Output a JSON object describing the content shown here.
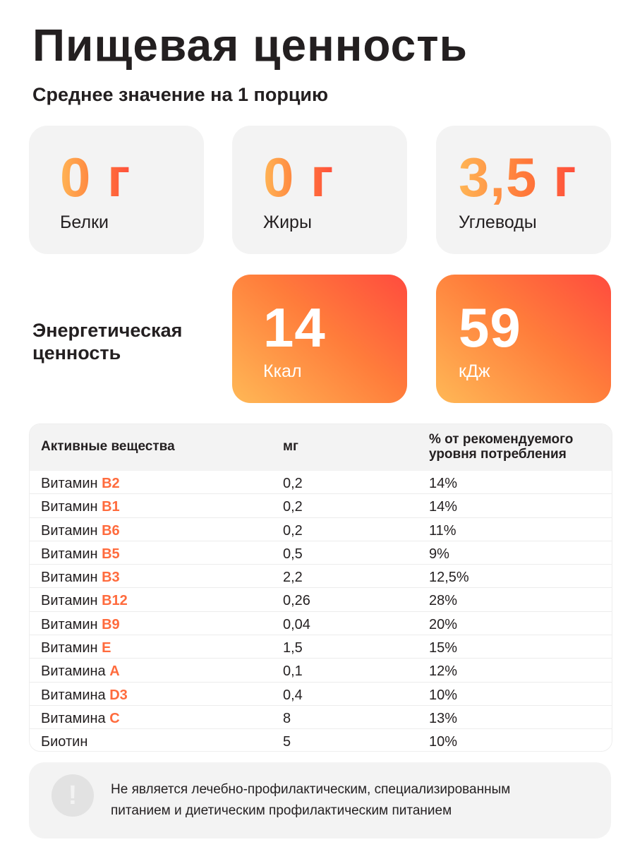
{
  "title": "Пищевая ценность",
  "subtitle": "Среднее значение на 1 порцию",
  "macros": [
    {
      "value": "0 г",
      "label": "Белки"
    },
    {
      "value": "0 г",
      "label": "Жиры"
    },
    {
      "value": "3,5 г",
      "label": "Углеводы"
    }
  ],
  "energy": {
    "label_line1": "Энергетическая",
    "label_line2": "ценность",
    "kcal": {
      "value": "14",
      "unit": "Ккал"
    },
    "kj": {
      "value": "59",
      "unit": "кДж"
    }
  },
  "table": {
    "headers": [
      "Активные вещества",
      "мг",
      "% от рекомендуемого",
      "уровня потребления"
    ],
    "rows": [
      {
        "prefix": "Витамин ",
        "name": "B2",
        "mg": "0,2",
        "pct": "14%"
      },
      {
        "prefix": "Витамин ",
        "name": "B1",
        "mg": "0,2",
        "pct": "14%"
      },
      {
        "prefix": "Витамин ",
        "name": "B6",
        "mg": "0,2",
        "pct": "11%"
      },
      {
        "prefix": "Витамин ",
        "name": "B5",
        "mg": "0,5",
        "pct": "9%"
      },
      {
        "prefix": "Витамин ",
        "name": "B3",
        "mg": "2,2",
        "pct": "12,5%"
      },
      {
        "prefix": "Витамин ",
        "name": "B12",
        "mg": "0,26",
        "pct": "28%"
      },
      {
        "prefix": "Витамин ",
        "name": "B9",
        "mg": "0,04",
        "pct": "20%"
      },
      {
        "prefix": "Витамин ",
        "name": "E",
        "mg": "1,5",
        "pct": "15%"
      },
      {
        "prefix": "Витамина ",
        "name": "A",
        "mg": "0,1",
        "pct": "12%"
      },
      {
        "prefix": "Витамина ",
        "name": "D3",
        "mg": "0,4",
        "pct": "10%"
      },
      {
        "prefix": "Витамина ",
        "name": "C",
        "mg": "8",
        "pct": "13%"
      },
      {
        "prefix": "Биотин",
        "name": "",
        "mg": "5",
        "pct": "10%"
      }
    ]
  },
  "note": {
    "icon": "exclamation-icon",
    "line1": "Не является лечебно-профилактическим, специализированным",
    "line2": "питанием и диетическим профилактическим питанием"
  },
  "colors": {
    "accent": "#ff6b3d",
    "gradient_start": "#ffb856",
    "gradient_end": "#ff4b3e",
    "card_bg": "#f3f3f3"
  }
}
